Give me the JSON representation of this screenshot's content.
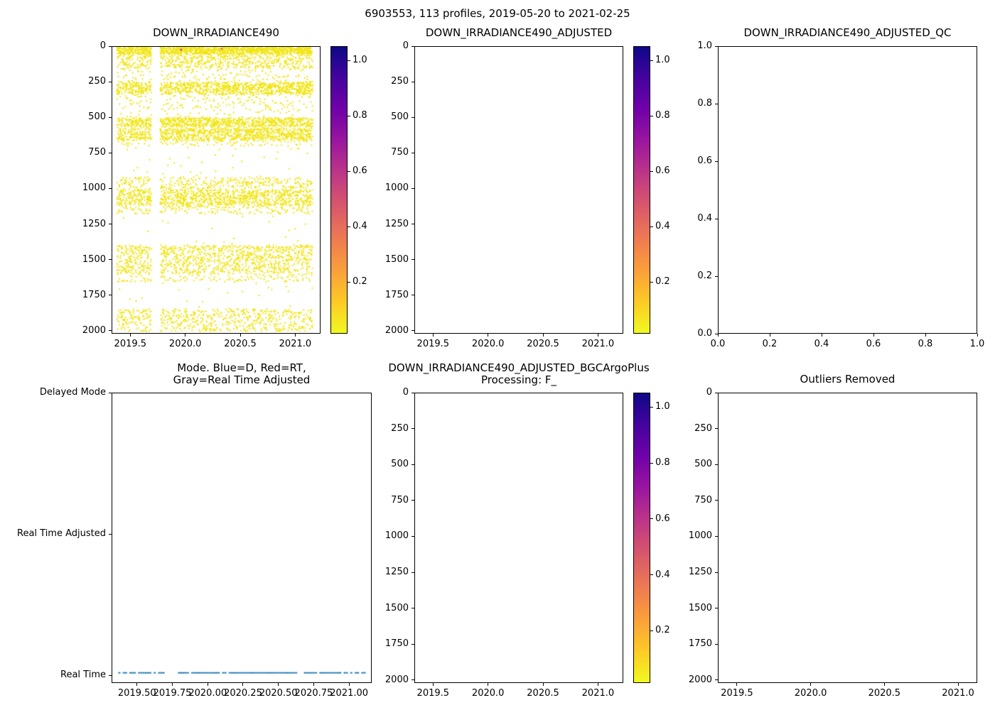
{
  "figure_title": "6903553, 113 profiles, 2019-05-20 to 2021-02-25",
  "colors": {
    "scatter_yellow": "#f1e514",
    "mode_blue": "#1f77b4",
    "plasma_r_gradient": [
      "#0d0887",
      "#46039f",
      "#7201a8",
      "#9c179e",
      "#bd3786",
      "#d8576b",
      "#ed7953",
      "#fa9e3b",
      "#fdc926",
      "#f0f921"
    ]
  },
  "chart_data": [
    {
      "id": "irr",
      "type": "scatter",
      "title": "DOWN_IRRADIANCE490",
      "xlabel": "",
      "ylabel": "",
      "xlim": [
        2019.33,
        2021.23
      ],
      "ylim": [
        0,
        2020
      ],
      "x_ticks": [
        2019.5,
        2020.0,
        2020.5,
        2021.0
      ],
      "x_tick_labels": [
        "2019.5",
        "2020.0",
        "2020.5",
        "2021.0"
      ],
      "y_ticks": [
        0,
        250,
        500,
        750,
        1000,
        1250,
        1500,
        1750,
        2000
      ],
      "y_tick_labels": [
        "0",
        "250",
        "500",
        "750",
        "1000",
        "1250",
        "1500",
        "1750",
        "2000"
      ],
      "colorbar": {
        "vmin": 0.013,
        "vmax": 1.052,
        "ticks": [
          0.2,
          0.4,
          0.6,
          0.8,
          1.0
        ],
        "tick_labels": [
          "0.2",
          "0.4",
          "0.6",
          "0.8",
          "1.0"
        ]
      },
      "profiles": {
        "start": 2019.38,
        "end": 2021.155,
        "count": 113,
        "gap": [
          2019.695,
          2019.775
        ]
      },
      "bands": [
        [
          0,
          50,
          10
        ],
        [
          50,
          150,
          5
        ],
        [
          150,
          250,
          1.5
        ],
        [
          250,
          335,
          9
        ],
        [
          335,
          430,
          1.2
        ],
        [
          430,
          500,
          0.5
        ],
        [
          500,
          560,
          7
        ],
        [
          560,
          580,
          1
        ],
        [
          580,
          660,
          8
        ],
        [
          660,
          700,
          0.8
        ],
        [
          700,
          920,
          0.35
        ],
        [
          920,
          1010,
          3
        ],
        [
          1010,
          1120,
          9
        ],
        [
          1120,
          1180,
          1.5
        ],
        [
          1180,
          1400,
          0.25
        ],
        [
          1400,
          1435,
          2
        ],
        [
          1435,
          1600,
          8
        ],
        [
          1600,
          1660,
          1.2
        ],
        [
          1660,
          1850,
          0.2
        ],
        [
          1850,
          2010,
          5.5
        ]
      ],
      "outliers": [
        [
          2019.96,
          20,
          "#d8576b"
        ],
        [
          2020.33,
          14,
          "#ed7953"
        ]
      ]
    },
    {
      "id": "adj",
      "type": "scatter",
      "title": "DOWN_IRRADIANCE490_ADJUSTED",
      "xlim": [
        2019.33,
        2021.23
      ],
      "ylim": [
        0,
        2020
      ],
      "x_ticks": [
        2019.5,
        2020.0,
        2020.5,
        2021.0
      ],
      "x_tick_labels": [
        "2019.5",
        "2020.0",
        "2020.5",
        "2021.0"
      ],
      "y_ticks": [
        0,
        250,
        500,
        750,
        1000,
        1250,
        1500,
        1750,
        2000
      ],
      "y_tick_labels": [
        "0",
        "250",
        "500",
        "750",
        "1000",
        "1250",
        "1500",
        "1750",
        "2000"
      ],
      "colorbar": {
        "vmin": 0.013,
        "vmax": 1.052,
        "ticks": [
          0.2,
          0.4,
          0.6,
          0.8,
          1.0
        ],
        "tick_labels": [
          "0.2",
          "0.4",
          "0.6",
          "0.8",
          "1.0"
        ]
      },
      "empty": true
    },
    {
      "id": "qc",
      "type": "scatter",
      "title": "DOWN_IRRADIANCE490_ADJUSTED_QC",
      "xlim": [
        0,
        1
      ],
      "ylim": [
        1,
        0
      ],
      "x_ticks": [
        0,
        0.2,
        0.4,
        0.6,
        0.8,
        1.0
      ],
      "x_tick_labels": [
        "0.0",
        "0.2",
        "0.4",
        "0.6",
        "0.8",
        "1.0"
      ],
      "y_ticks": [
        1.0,
        0.8,
        0.6,
        0.4,
        0.2,
        0.0
      ],
      "y_tick_labels": [
        "1.0",
        "0.8",
        "0.6",
        "0.4",
        "0.2",
        "0.0"
      ],
      "empty": true
    },
    {
      "id": "mode",
      "type": "scatter",
      "title": "Mode. Blue=D, Red=RT,\nGray=Real Time Adjusted",
      "xlim": [
        2019.32,
        2021.16
      ],
      "ylim": [
        2.0,
        -0.055
      ],
      "x_ticks": [
        2019.5,
        2019.75,
        2020.0,
        2020.25,
        2020.5,
        2020.75,
        2021.0
      ],
      "x_tick_labels": [
        "2019.50",
        "2019.75",
        "2020.00",
        "2020.25",
        "2020.50",
        "2020.75",
        "2021.00"
      ],
      "y_ticks": [
        2,
        1,
        0
      ],
      "y_tick_labels": [
        "Delayed Mode",
        "Real Time Adjusted",
        "Real Time"
      ],
      "series": [
        {
          "name": "Real Time",
          "y": 0,
          "x_start": 2019.37,
          "x_end": 2021.13,
          "count": 113,
          "gap": [
            2019.695,
            2019.77
          ],
          "drop_rate": 0.12,
          "color": "#1f77b4"
        }
      ]
    },
    {
      "id": "bgc",
      "type": "scatter",
      "title": "DOWN_IRRADIANCE490_ADJUSTED_BGCArgoPlus\nProcessing: F_",
      "xlim": [
        2019.33,
        2021.23
      ],
      "ylim": [
        0,
        2020
      ],
      "x_ticks": [
        2019.5,
        2020.0,
        2020.5,
        2021.0
      ],
      "x_tick_labels": [
        "2019.5",
        "2020.0",
        "2020.5",
        "2021.0"
      ],
      "y_ticks": [
        0,
        250,
        500,
        750,
        1000,
        1250,
        1500,
        1750,
        2000
      ],
      "y_tick_labels": [
        "0",
        "250",
        "500",
        "750",
        "1000",
        "1250",
        "1500",
        "1750",
        "2000"
      ],
      "colorbar": {
        "vmin": 0.013,
        "vmax": 1.052,
        "ticks": [
          0.2,
          0.4,
          0.6,
          0.8,
          1.0
        ],
        "tick_labels": [
          "0.2",
          "0.4",
          "0.6",
          "0.8",
          "1.0"
        ]
      },
      "empty": true
    },
    {
      "id": "out",
      "type": "scatter",
      "title": "Outliers Removed",
      "xlim": [
        2019.37,
        2021.13
      ],
      "ylim": [
        0,
        2020
      ],
      "x_ticks": [
        2019.5,
        2020.0,
        2020.5,
        2021.0
      ],
      "x_tick_labels": [
        "2019.5",
        "2020.0",
        "2020.5",
        "2021.0"
      ],
      "y_ticks": [
        0,
        250,
        500,
        750,
        1000,
        1250,
        1500,
        1750,
        2000
      ],
      "y_tick_labels": [
        "0",
        "250",
        "500",
        "750",
        "1000",
        "1250",
        "1500",
        "1750",
        "2000"
      ],
      "empty": true
    }
  ]
}
